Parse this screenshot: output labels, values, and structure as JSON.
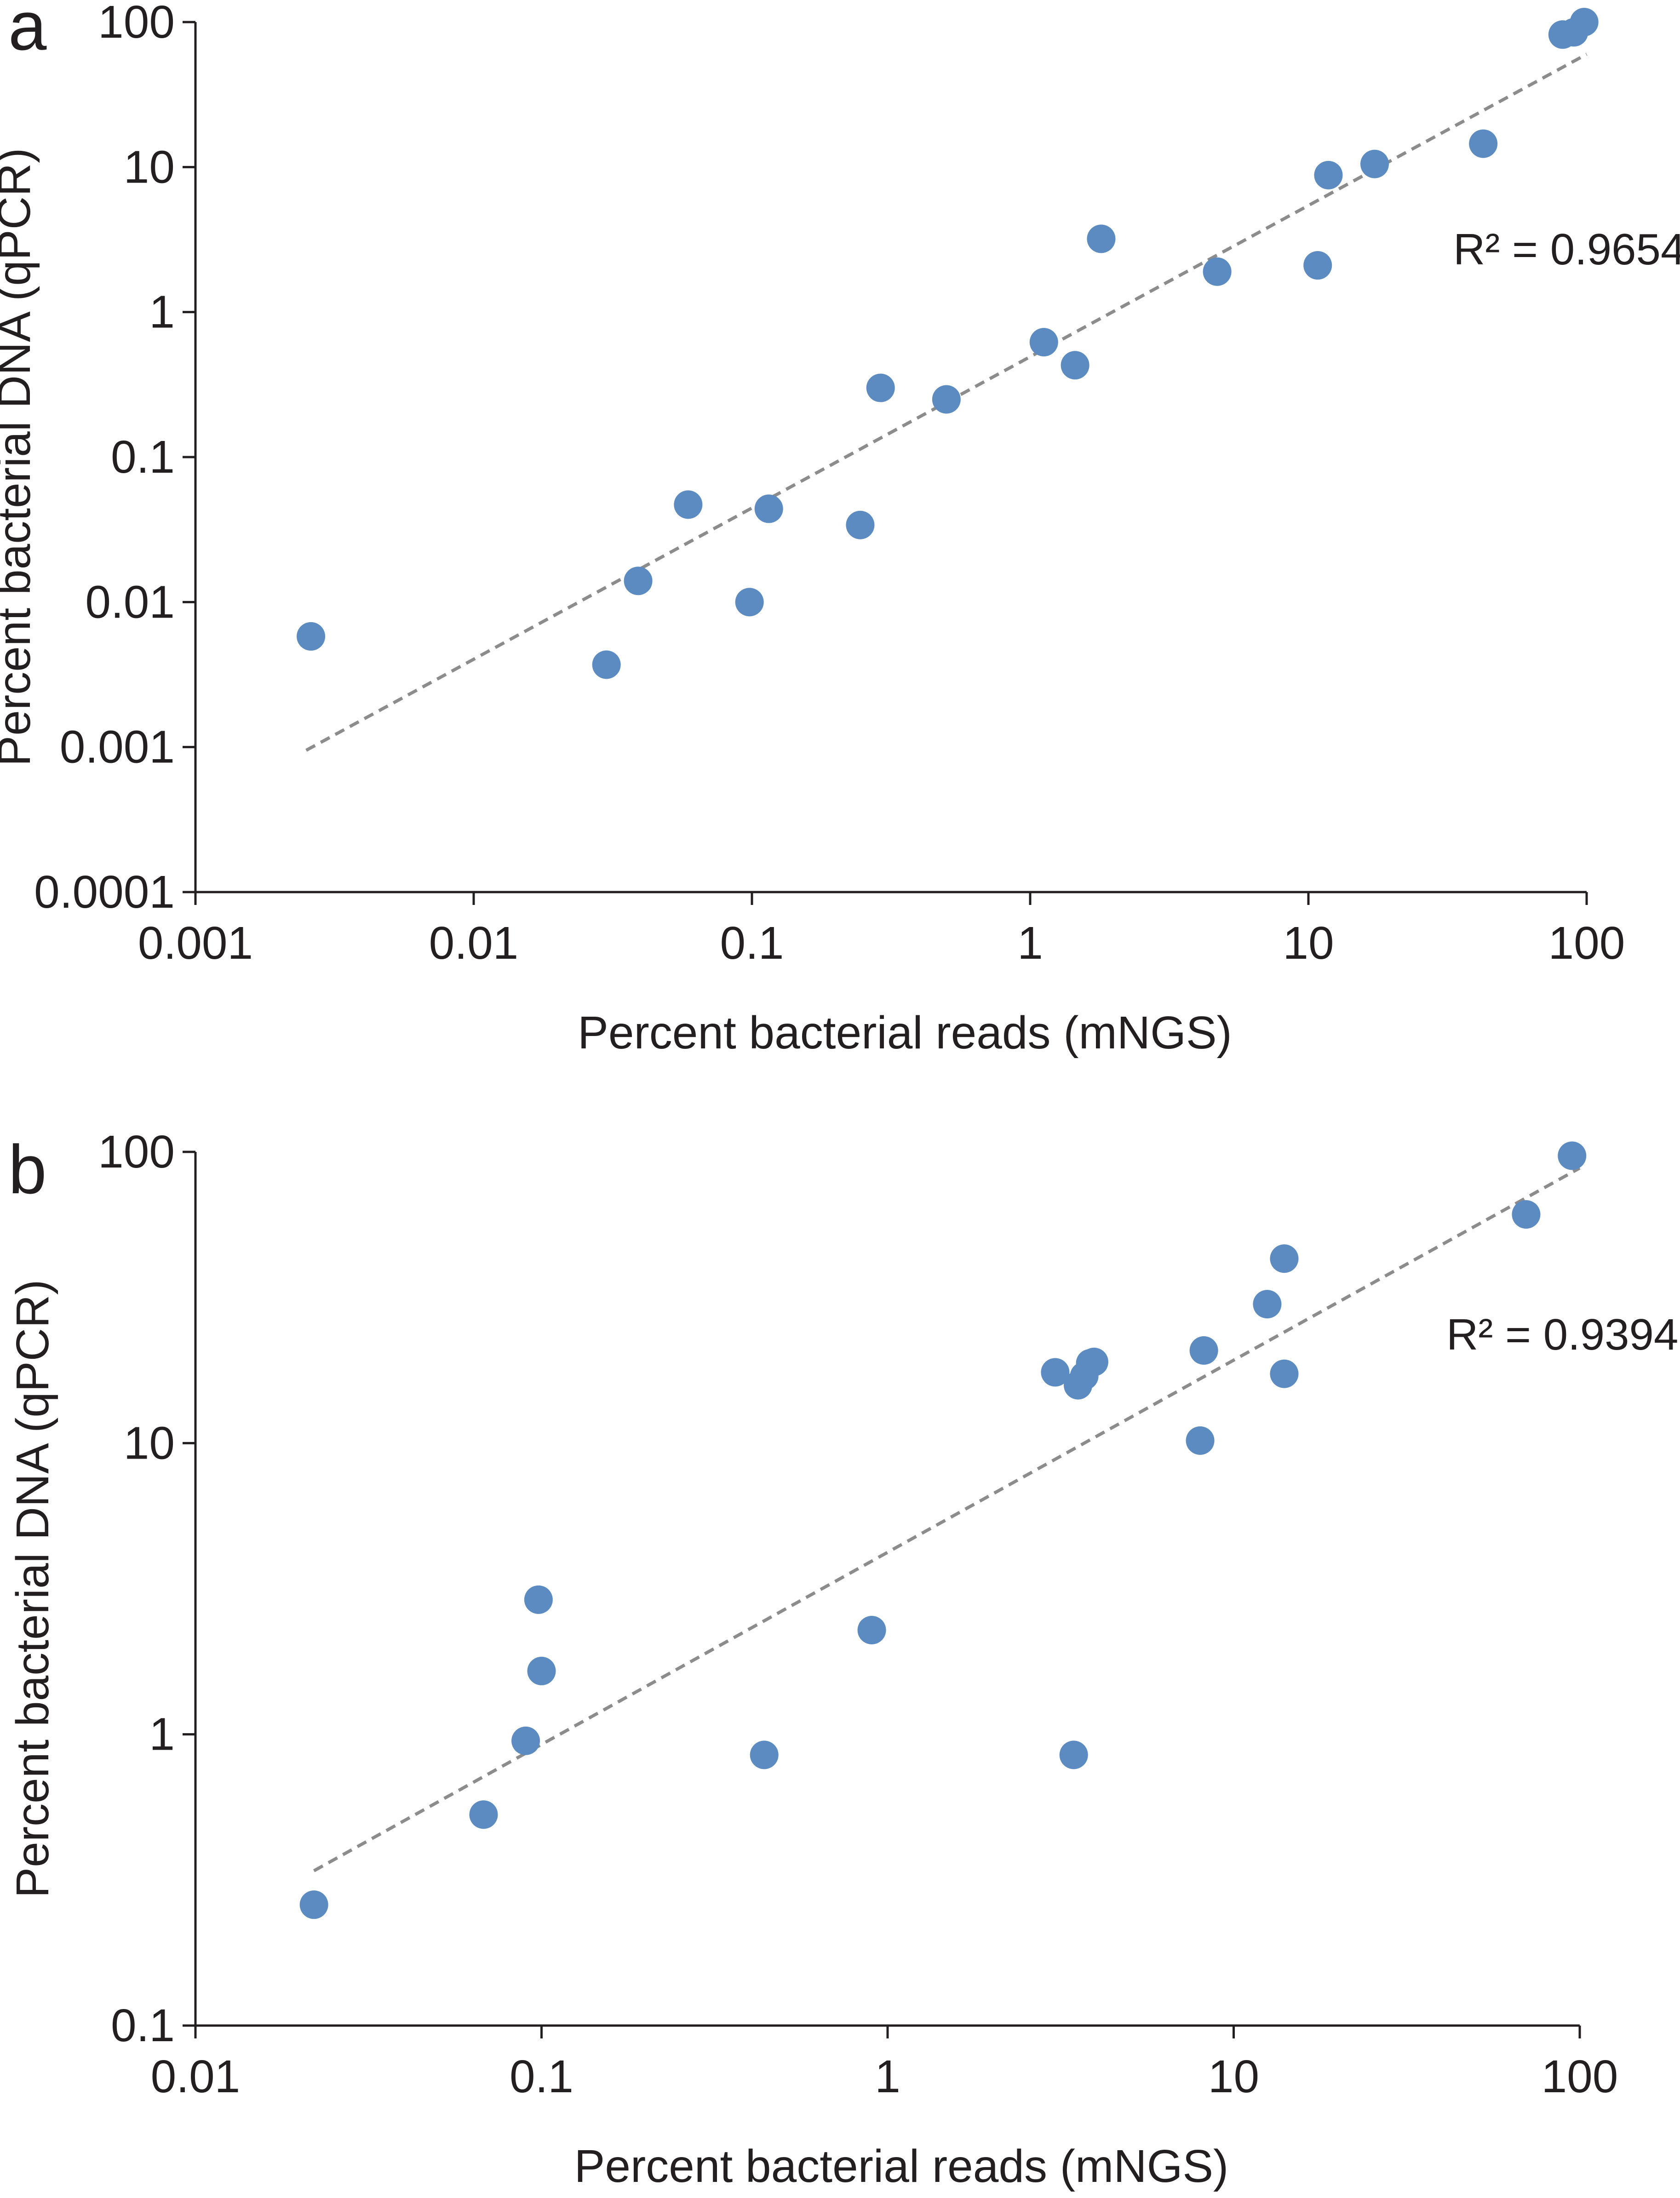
{
  "chart_data": [
    {
      "type": "scatter",
      "panel_label": "a",
      "title": "",
      "xlabel": "Percent bacterial reads (mNGS)",
      "ylabel": "Percent bacterial DNA (qPCR)",
      "xscale": "log",
      "yscale": "log",
      "xlim": [
        0.001,
        100
      ],
      "ylim": [
        0.0001,
        100
      ],
      "x_tick_labels": [
        "0.001",
        "0.01",
        "0.1",
        "1",
        "10",
        "100"
      ],
      "y_tick_labels": [
        "0.0001",
        "0.001",
        "0.01",
        "0.1",
        "1",
        "10",
        "100"
      ],
      "grid": false,
      "annotation": "R² = 0.9654",
      "trendline": {
        "style": "dashed",
        "x_start": 0.0025,
        "y_start": 0.00095,
        "x_end": 100,
        "y_end": 60
      },
      "series": [
        {
          "name": "samples",
          "x": [
            0.0026,
            0.03,
            0.039,
            0.059,
            0.098,
            0.115,
            0.245,
            0.29,
            0.5,
            1.12,
            1.45,
            1.8,
            4.7,
            10.8,
            11.8,
            17.3,
            42.5,
            82,
            90,
            98
          ],
          "y": [
            0.0058,
            0.0037,
            0.014,
            0.047,
            0.01,
            0.044,
            0.034,
            0.3,
            0.25,
            0.62,
            0.43,
            3.2,
            1.9,
            2.1,
            8.8,
            10.5,
            14.5,
            82,
            85,
            100
          ]
        }
      ]
    },
    {
      "type": "scatter",
      "panel_label": "b",
      "title": "",
      "xlabel": "Percent bacterial reads (mNGS)",
      "ylabel": "Percent bacterial DNA (qPCR)",
      "xscale": "log",
      "yscale": "log",
      "xlim": [
        0.01,
        100
      ],
      "ylim": [
        0.1,
        100
      ],
      "x_tick_labels": [
        "0.01",
        "0.1",
        "1",
        "10",
        "100"
      ],
      "y_tick_labels": [
        "0.1",
        "1",
        "10",
        "100"
      ],
      "grid": false,
      "annotation": "R² = 0.9394",
      "trendline": {
        "style": "dashed",
        "x_start": 0.022,
        "y_start": 0.34,
        "x_end": 100,
        "y_end": 88
      },
      "series": [
        {
          "name": "samples",
          "x": [
            0.022,
            0.068,
            0.09,
            0.098,
            0.1,
            0.44,
            0.9,
            3.05,
            3.55,
            3.7,
            3.85,
            3.95,
            3.45,
            8.0,
            8.2,
            12.5,
            14.0,
            14.0,
            70,
            95
          ],
          "y": [
            0.26,
            0.53,
            0.95,
            2.9,
            1.65,
            0.85,
            2.28,
            17.5,
            15.8,
            17.0,
            18.8,
            19.0,
            0.85,
            10.2,
            20.8,
            30,
            43,
            17.3,
            61,
            97
          ]
        }
      ]
    }
  ]
}
